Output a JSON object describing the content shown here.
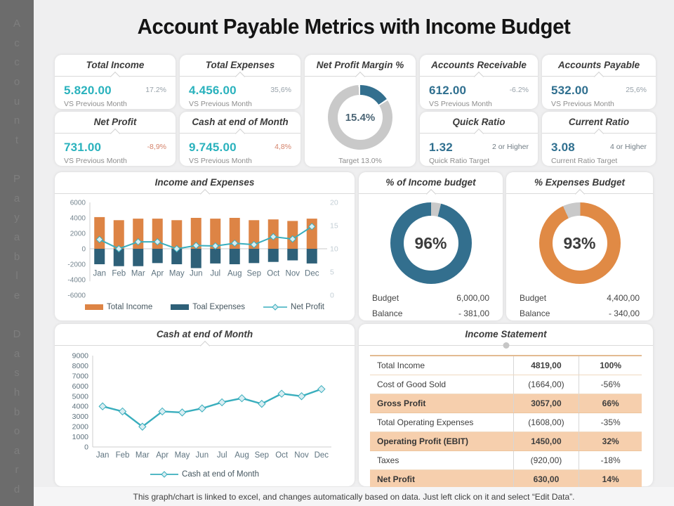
{
  "sidebar": {
    "vertical_text": "Account Payable Dashboard"
  },
  "title": "Account Payable Metrics with Income Budget",
  "footer": "This graph/chart is linked to excel,  and changes automatically based on data. Just left click on it and select “Edit Data”.",
  "kpis": {
    "total_income": {
      "title": "Total Income",
      "value": "5.820.00",
      "delta": "17.2%",
      "caption": "VS Previous Month"
    },
    "total_expenses": {
      "title": "Total Expenses",
      "value": "4.456.00",
      "delta": "35,6%",
      "caption": "VS Previous Month"
    },
    "net_profit": {
      "title": "Net Profit",
      "value": "731.00",
      "delta": "-8,9%",
      "caption": "VS Previous Month"
    },
    "cash_end_month": {
      "title": "Cash at end of Month",
      "value": "9.745.00",
      "delta": "4,8%",
      "caption": "VS Previous Month"
    },
    "accounts_receivable": {
      "title": "Accounts Receivable",
      "value": "612.00",
      "delta": "-6.2%",
      "caption": "VS Previous Month"
    },
    "accounts_payable": {
      "title": "Accounts Payable",
      "value": "532.00",
      "delta": "25,6%",
      "caption": "VS Previous Month"
    },
    "quick_ratio": {
      "title": "Quick Ratio",
      "value": "1.32",
      "delta": "2 or Higher",
      "caption": "Quick Ratio Target"
    },
    "current_ratio": {
      "title": "Current Ratio",
      "value": "3.08",
      "delta": "4 or Higher",
      "caption": "Current Ratio Target"
    }
  },
  "colors": {
    "teal": "#2ab2bd",
    "steel": "#2f6f8f",
    "orange": "#dd8445",
    "dark_blue_bar": "#2e6078",
    "line_teal": "#39aebd",
    "donut_blue": "#336f8e",
    "donut_orange": "#e08a45",
    "track_gray": "#c9c9c9",
    "highlight_row": "#f6cfad",
    "salmon_delta": "#d4826a"
  },
  "chart_data": [
    {
      "type": "donut",
      "title": "Net Profit Margin %",
      "value": 15.4,
      "value_label": "15.4%",
      "target_label": "Target  13.0%",
      "color": "#336f8e",
      "track_color": "#c9c9c9"
    },
    {
      "type": "bar",
      "title": "Income and Expenses",
      "categories": [
        "Jan",
        "Feb",
        "Mar",
        "Apr",
        "May",
        "Jun",
        "Jul",
        "Aug",
        "Sep",
        "Oct",
        "Nov",
        "Dec"
      ],
      "series": [
        {
          "name": "Total Income",
          "type": "bar",
          "axis": "left",
          "color": "#dd8445",
          "values": [
            4100,
            3700,
            3900,
            3900,
            3700,
            4000,
            3900,
            4000,
            3700,
            3800,
            3600,
            3900
          ]
        },
        {
          "name": "Toal Expenses",
          "type": "bar",
          "axis": "left",
          "color": "#2e6078",
          "values": [
            -2000,
            -2250,
            -2250,
            -1850,
            -2000,
            -2500,
            -1900,
            -2000,
            -1850,
            -1700,
            -1500,
            -1900
          ]
        },
        {
          "name": "Net Profit",
          "type": "line",
          "axis": "right",
          "color": "#39aebd",
          "values": [
            12,
            10,
            11.5,
            11.5,
            10,
            10.7,
            10.6,
            11.2,
            10.9,
            12.6,
            12.1,
            14.8
          ]
        }
      ],
      "ylim": [
        -6000,
        6000
      ],
      "ytick_step": 2000,
      "y2lim": [
        0,
        20
      ],
      "y2tick_step": 5,
      "grid": false,
      "legend_position": "bottom"
    },
    {
      "type": "pie",
      "title": "% of Income budget",
      "percent": 96,
      "center_label": "96%",
      "color": "#336f8e",
      "track_color": "#c9c9c9",
      "gap_center_deg": 7,
      "rows": [
        [
          "Budget",
          "6,000,00"
        ],
        [
          "Balance",
          "- 381,00"
        ]
      ]
    },
    {
      "type": "pie",
      "title": "% Expenses Budget",
      "percent": 93,
      "center_label": "93%",
      "color": "#e08a45",
      "track_color": "#c9c9c9",
      "gap_center_deg": -12,
      "rows": [
        [
          "Budget",
          "4,400,00"
        ],
        [
          "Balance",
          "- 340,00"
        ]
      ]
    },
    {
      "type": "line",
      "title": "Cash at end of Month",
      "categories": [
        "Jan",
        "Feb",
        "Mar",
        "Apr",
        "May",
        "Jun",
        "Jul",
        "Aug",
        "Sep",
        "Oct",
        "Nov",
        "Dec"
      ],
      "series": [
        {
          "name": "Cash at end of Month",
          "color": "#39aebd",
          "values": [
            4000,
            3500,
            2000,
            3500,
            3400,
            3800,
            4400,
            4800,
            4250,
            5250,
            5000,
            5700
          ]
        }
      ],
      "ylim": [
        0,
        9000
      ],
      "ytick_step": 1000,
      "grid": false,
      "legend_position": "bottom"
    },
    {
      "type": "table",
      "title": "Income Statement",
      "rows": [
        {
          "label": "Total Income",
          "value": "4819,00",
          "pct": "100%",
          "highlight": false
        },
        {
          "label": "Cost of Good Sold",
          "value": "(1664,00)",
          "pct": "-56%",
          "highlight": false
        },
        {
          "label": "Gross Profit",
          "value": "3057,00",
          "pct": "66%",
          "highlight": true
        },
        {
          "label": "Total Operating Expenses",
          "value": "(1608,00)",
          "pct": "-35%",
          "highlight": false
        },
        {
          "label": "Operating Profit (EBIT)",
          "value": "1450,00",
          "pct": "32%",
          "highlight": true
        },
        {
          "label": "Taxes",
          "value": "(920,00)",
          "pct": "-18%",
          "highlight": false
        },
        {
          "label": "Net Profit",
          "value": "630,00",
          "pct": "14%",
          "highlight": true
        }
      ]
    }
  ]
}
